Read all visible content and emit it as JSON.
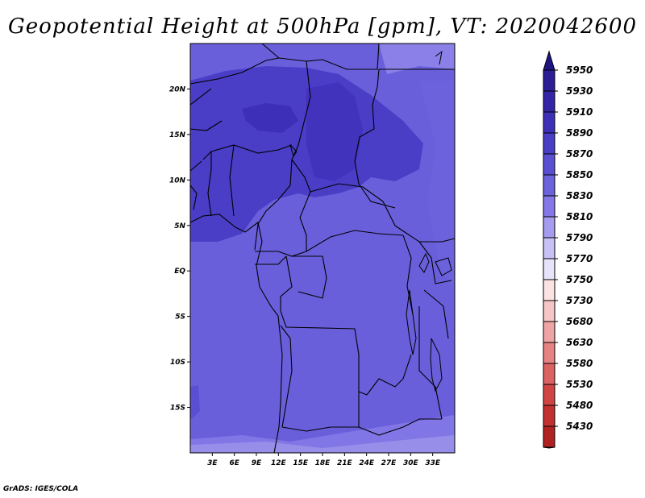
{
  "title": "Geopotential Height at 500hPa [gpm], VT: 2020042600",
  "credit": "GrADS: IGES/COLA",
  "map": {
    "lon_range": [
      0,
      36
    ],
    "lat_range": [
      -20,
      25
    ],
    "lat_ticks": [
      {
        "value": 20,
        "label": "20N"
      },
      {
        "value": 15,
        "label": "15N"
      },
      {
        "value": 10,
        "label": "10N"
      },
      {
        "value": 5,
        "label": "5N"
      },
      {
        "value": 0,
        "label": "EQ"
      },
      {
        "value": -5,
        "label": "5S"
      },
      {
        "value": -10,
        "label": "10S"
      },
      {
        "value": -15,
        "label": "15S"
      }
    ],
    "lon_ticks": [
      {
        "value": 3,
        "label": "3E"
      },
      {
        "value": 6,
        "label": "6E"
      },
      {
        "value": 9,
        "label": "9E"
      },
      {
        "value": 12,
        "label": "12E"
      },
      {
        "value": 15,
        "label": "15E"
      },
      {
        "value": 18,
        "label": "18E"
      },
      {
        "value": 21,
        "label": "21E"
      },
      {
        "value": 24,
        "label": "24E"
      },
      {
        "value": 27,
        "label": "27E"
      },
      {
        "value": 30,
        "label": "30E"
      },
      {
        "value": 33,
        "label": "33E"
      }
    ]
  },
  "colorbar": {
    "levels": [
      {
        "label": "5950",
        "color": "#2a1d96"
      },
      {
        "label": "5930",
        "color": "#3424a6"
      },
      {
        "label": "5910",
        "color": "#3e2fb8"
      },
      {
        "label": "5890",
        "color": "#4a3dc6"
      },
      {
        "label": "5870",
        "color": "#5a4fd2"
      },
      {
        "label": "5850",
        "color": "#6c62dc"
      },
      {
        "label": "5830",
        "color": "#8478e8"
      },
      {
        "label": "5810",
        "color": "#a59cf0"
      },
      {
        "label": "5790",
        "color": "#c7c1f6"
      },
      {
        "label": "5770",
        "color": "#e6e3fb"
      },
      {
        "label": "5750",
        "color": "#fbe3e3"
      },
      {
        "label": "5730",
        "color": "#f6c6c6"
      },
      {
        "label": "5680",
        "color": "#eea4a4"
      },
      {
        "label": "5630",
        "color": "#e68282"
      },
      {
        "label": "5580",
        "color": "#dc6262"
      },
      {
        "label": "5530",
        "color": "#d04444"
      },
      {
        "label": "5480",
        "color": "#c23030"
      },
      {
        "label": "5430",
        "color": "#b02222"
      }
    ],
    "top_color": "#1f1484",
    "bottom_color": "#9a1a1a"
  }
}
